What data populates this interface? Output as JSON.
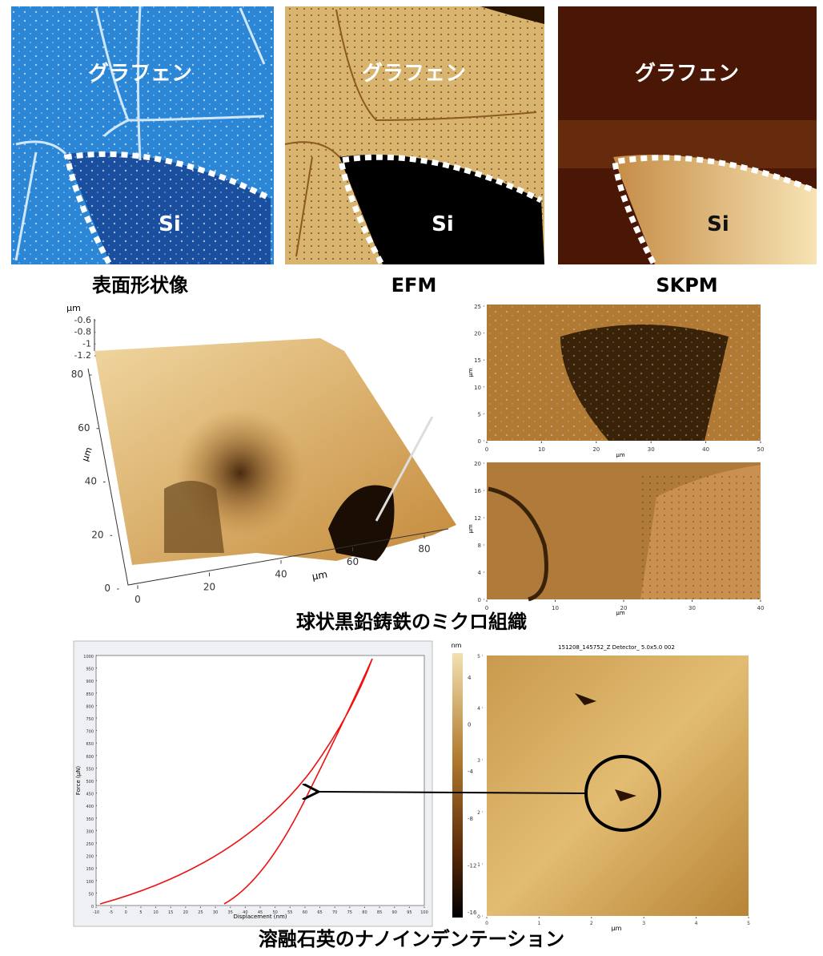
{
  "top_panels": [
    {
      "region_top": "グラフェン",
      "region_bottom": "Si",
      "caption": "表面形状像"
    },
    {
      "region_top": "グラフェン",
      "region_bottom": "Si",
      "caption": "EFM"
    },
    {
      "region_top": "グラフェン",
      "region_bottom": "Si",
      "caption": "SKPM"
    }
  ],
  "microstructure": {
    "caption": "球状黒鉛鋳鉄のミクロ組織",
    "plot3d": {
      "unit": "µm",
      "zticks": [
        -0.6,
        -0.8,
        -1,
        -1.2
      ],
      "yticks": [
        80,
        60,
        40,
        20,
        0
      ],
      "xticks": [
        0,
        20,
        40,
        60,
        80
      ]
    },
    "map_top": {
      "unit": "µm",
      "yticks": [
        0,
        5,
        10,
        15,
        20,
        25
      ],
      "xticks": [
        0,
        10,
        20,
        30,
        40,
        50
      ]
    },
    "map_bottom": {
      "unit": "µm",
      "yticks": [
        0,
        4,
        8,
        12,
        16,
        20
      ],
      "xticks": [
        0,
        10,
        20,
        30,
        40
      ]
    }
  },
  "nanoindentation": {
    "caption": "溶融石英のナノインデンテーション",
    "force_plot": {
      "x_label": "Displacement (nm)",
      "y_label": "Force (µN)",
      "xticks": [
        -10,
        -5,
        0,
        5,
        10,
        15,
        20,
        25,
        30,
        35,
        40,
        45,
        50,
        55,
        60,
        65,
        70,
        75,
        80,
        85,
        90,
        95,
        100
      ],
      "yticks": [
        0,
        50,
        100,
        150,
        200,
        250,
        300,
        350,
        400,
        450,
        500,
        550,
        600,
        650,
        700,
        750,
        800,
        850,
        900,
        950,
        1000
      ]
    },
    "colorbar": {
      "unit": "nm",
      "ticks": [
        4,
        0,
        -4,
        -8,
        -12,
        -16
      ]
    },
    "afm_image": {
      "title": "151208_145752_Z Detector_ 5.0x5.0 002",
      "unit": "µm",
      "xticks": [
        0,
        1,
        2,
        3,
        4,
        5
      ],
      "yticks": [
        0,
        1,
        2,
        3,
        4,
        5
      ]
    }
  }
}
